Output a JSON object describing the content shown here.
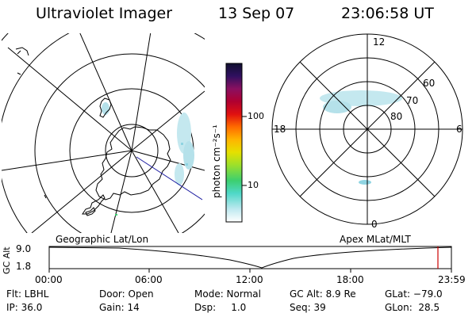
{
  "header": {
    "instrument": "Ultraviolet Imager",
    "date": "13 Sep 07",
    "time": "23:06:58 UT"
  },
  "colorbar": {
    "unit_label": "photon cm⁻²s⁻¹",
    "ticks": [
      "100",
      "10"
    ]
  },
  "apex_map": {
    "mlt_labels": {
      "top": "12",
      "bottom": "0",
      "left": "18",
      "right": "6"
    },
    "mlat_labels": [
      "60",
      "70",
      "80"
    ]
  },
  "map_titles": {
    "left": "Geographic Lat/Lon",
    "right": "Apex MLat/MLT"
  },
  "altitude_plot": {
    "ylabel": "GC Alt",
    "y_ticks": [
      "9.0",
      "1.8"
    ],
    "x_ticks": [
      "00:00",
      "06:00",
      "12:00",
      "18:00",
      "23:59"
    ]
  },
  "info": {
    "row1": {
      "filter": "Flt: LBHL",
      "door": "Door: Open",
      "mode": "Mode: Normal",
      "gc_alt": "GC Alt: 8.9 Re",
      "glat": "GLat: −79.0"
    },
    "row2": {
      "ip": "IP: 36.0",
      "gain": "Gain: 14",
      "dsp": "Dsp:     1.0",
      "seq": "Seq: 39",
      "glon": "GLon:  28.5"
    }
  },
  "colors": {
    "aurora": "#b8e4ec",
    "aurora_mid": "#8fd4e2",
    "marker": "#cc0000",
    "track": "#1a1aa0"
  }
}
